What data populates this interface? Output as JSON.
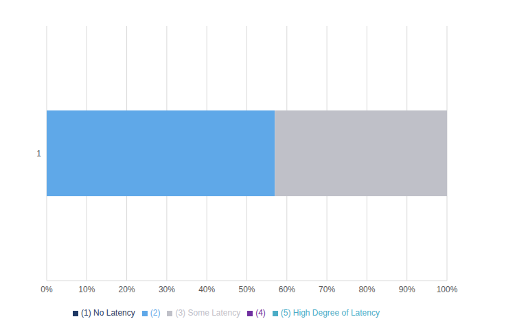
{
  "chart_data": {
    "type": "bar",
    "orientation": "horizontal",
    "stacked": true,
    "categories": [
      "1"
    ],
    "series": [
      {
        "name": "(1) No Latency",
        "color": "#1f3864",
        "values": [
          0
        ]
      },
      {
        "name": "(2)",
        "color": "#5fa8e8",
        "values": [
          57
        ]
      },
      {
        "name": "(3) Some Latency",
        "color": "#bfc0c8",
        "values": [
          43
        ]
      },
      {
        "name": "(4)",
        "color": "#7030a0",
        "values": [
          0
        ]
      },
      {
        "name": "(5) High Degree of Latency",
        "color": "#4bacc6",
        "values": [
          0
        ]
      }
    ],
    "xlim": [
      0,
      100
    ],
    "xticks": [
      {
        "value": 0,
        "label": "0%"
      },
      {
        "value": 10,
        "label": "10%"
      },
      {
        "value": 20,
        "label": "20%"
      },
      {
        "value": 30,
        "label": "30%"
      },
      {
        "value": 40,
        "label": "40%"
      },
      {
        "value": 50,
        "label": "50%"
      },
      {
        "value": 60,
        "label": "60%"
      },
      {
        "value": 70,
        "label": "70%"
      },
      {
        "value": 80,
        "label": "80%"
      },
      {
        "value": 90,
        "label": "90%"
      },
      {
        "value": 100,
        "label": "100%"
      }
    ],
    "grid": true,
    "legend": "bottom"
  }
}
